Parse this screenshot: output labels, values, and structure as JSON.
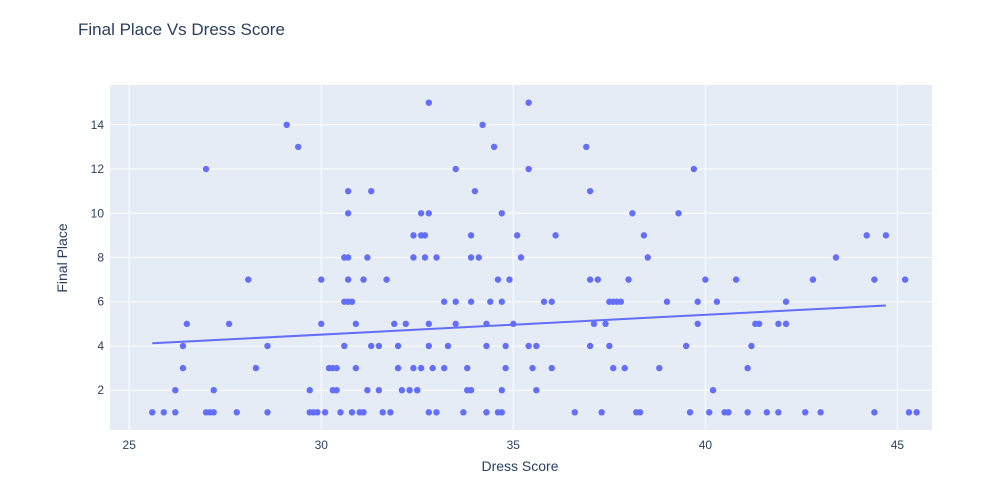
{
  "chart_data": {
    "type": "scatter",
    "title": "Final Place Vs Dress Score",
    "xlabel": "Dress Score",
    "ylabel": "Final Place",
    "xlim": [
      24.5,
      45.9
    ],
    "ylim": [
      0.2,
      15.8
    ],
    "xticks": [
      25,
      30,
      35,
      40,
      45
    ],
    "yticks": [
      2,
      4,
      6,
      8,
      10,
      12,
      14
    ],
    "grid": true,
    "legend": "none",
    "colors": {
      "points": "#636efa",
      "trend": "#636efa",
      "plot_bg": "#e5ecf6",
      "grid": "#ffffff"
    },
    "trendline": [
      [
        25.6,
        4.12
      ],
      [
        44.7,
        5.83
      ]
    ],
    "points": [
      [
        25.6,
        1
      ],
      [
        25.9,
        1
      ],
      [
        26.2,
        1
      ],
      [
        26.2,
        2
      ],
      [
        26.4,
        3
      ],
      [
        26.4,
        4
      ],
      [
        26.5,
        5
      ],
      [
        27.0,
        12
      ],
      [
        27.0,
        1
      ],
      [
        27.1,
        1
      ],
      [
        27.2,
        2
      ],
      [
        27.2,
        1
      ],
      [
        27.6,
        5
      ],
      [
        27.8,
        1
      ],
      [
        28.1,
        7
      ],
      [
        28.3,
        3
      ],
      [
        28.6,
        4
      ],
      [
        28.6,
        1
      ],
      [
        29.1,
        14
      ],
      [
        29.4,
        13
      ],
      [
        29.7,
        2
      ],
      [
        29.7,
        1
      ],
      [
        29.8,
        1
      ],
      [
        29.9,
        1
      ],
      [
        30.0,
        7
      ],
      [
        30.0,
        5
      ],
      [
        30.1,
        1
      ],
      [
        30.2,
        3
      ],
      [
        30.3,
        3
      ],
      [
        30.3,
        2
      ],
      [
        30.4,
        2
      ],
      [
        30.4,
        3
      ],
      [
        30.5,
        1
      ],
      [
        30.6,
        4
      ],
      [
        30.6,
        6
      ],
      [
        30.6,
        8
      ],
      [
        30.7,
        6
      ],
      [
        30.7,
        8
      ],
      [
        30.7,
        10
      ],
      [
        30.7,
        11
      ],
      [
        30.7,
        7
      ],
      [
        30.8,
        6
      ],
      [
        30.8,
        1
      ],
      [
        30.9,
        5
      ],
      [
        30.9,
        3
      ],
      [
        31.0,
        1
      ],
      [
        31.1,
        1
      ],
      [
        31.1,
        7
      ],
      [
        31.2,
        2
      ],
      [
        31.2,
        8
      ],
      [
        31.3,
        4
      ],
      [
        31.3,
        11
      ],
      [
        31.5,
        2
      ],
      [
        31.5,
        4
      ],
      [
        31.6,
        1
      ],
      [
        31.7,
        7
      ],
      [
        31.8,
        1
      ],
      [
        31.9,
        5
      ],
      [
        32.0,
        4
      ],
      [
        32.0,
        3
      ],
      [
        32.1,
        2
      ],
      [
        32.2,
        5
      ],
      [
        32.3,
        2
      ],
      [
        32.4,
        3
      ],
      [
        32.4,
        9
      ],
      [
        32.4,
        8
      ],
      [
        32.5,
        2
      ],
      [
        32.5,
        2
      ],
      [
        32.6,
        3
      ],
      [
        32.6,
        9
      ],
      [
        32.6,
        10
      ],
      [
        32.7,
        8
      ],
      [
        32.7,
        9
      ],
      [
        32.8,
        15
      ],
      [
        32.8,
        10
      ],
      [
        32.8,
        5
      ],
      [
        32.8,
        4
      ],
      [
        32.8,
        1
      ],
      [
        32.9,
        3
      ],
      [
        33.0,
        1
      ],
      [
        33.0,
        8
      ],
      [
        33.2,
        3
      ],
      [
        33.2,
        6
      ],
      [
        33.3,
        4
      ],
      [
        33.5,
        12
      ],
      [
        33.5,
        6
      ],
      [
        33.5,
        5
      ],
      [
        33.7,
        1
      ],
      [
        33.8,
        2
      ],
      [
        33.8,
        3
      ],
      [
        33.9,
        9
      ],
      [
        33.9,
        6
      ],
      [
        33.9,
        2
      ],
      [
        33.9,
        8
      ],
      [
        34.0,
        11
      ],
      [
        34.1,
        8
      ],
      [
        34.2,
        14
      ],
      [
        34.3,
        5
      ],
      [
        34.3,
        4
      ],
      [
        34.3,
        1
      ],
      [
        34.4,
        6
      ],
      [
        34.5,
        13
      ],
      [
        34.6,
        1
      ],
      [
        34.6,
        7
      ],
      [
        34.7,
        1
      ],
      [
        34.7,
        2
      ],
      [
        34.7,
        6
      ],
      [
        34.7,
        10
      ],
      [
        34.8,
        3
      ],
      [
        34.8,
        4
      ],
      [
        34.9,
        7
      ],
      [
        35.0,
        5
      ],
      [
        35.1,
        9
      ],
      [
        35.2,
        8
      ],
      [
        35.4,
        15
      ],
      [
        35.4,
        12
      ],
      [
        35.4,
        4
      ],
      [
        35.5,
        3
      ],
      [
        35.6,
        4
      ],
      [
        35.6,
        2
      ],
      [
        35.8,
        6
      ],
      [
        36.0,
        3
      ],
      [
        36.0,
        6
      ],
      [
        36.1,
        9
      ],
      [
        36.6,
        1
      ],
      [
        36.9,
        13
      ],
      [
        37.0,
        11
      ],
      [
        37.0,
        4
      ],
      [
        37.0,
        7
      ],
      [
        37.1,
        5
      ],
      [
        37.2,
        7
      ],
      [
        37.3,
        1
      ],
      [
        37.4,
        5
      ],
      [
        37.5,
        4
      ],
      [
        37.5,
        6
      ],
      [
        37.6,
        3
      ],
      [
        37.6,
        6
      ],
      [
        37.7,
        6
      ],
      [
        37.8,
        6
      ],
      [
        37.9,
        3
      ],
      [
        38.0,
        7
      ],
      [
        38.1,
        10
      ],
      [
        38.2,
        1
      ],
      [
        38.3,
        1
      ],
      [
        38.4,
        9
      ],
      [
        38.5,
        8
      ],
      [
        38.8,
        3
      ],
      [
        39.0,
        6
      ],
      [
        39.3,
        10
      ],
      [
        39.5,
        4
      ],
      [
        39.6,
        1
      ],
      [
        39.7,
        12
      ],
      [
        39.8,
        5
      ],
      [
        39.8,
        6
      ],
      [
        40.0,
        7
      ],
      [
        40.1,
        1
      ],
      [
        40.2,
        2
      ],
      [
        40.3,
        6
      ],
      [
        40.5,
        1
      ],
      [
        40.6,
        1
      ],
      [
        40.6,
        1
      ],
      [
        40.8,
        7
      ],
      [
        41.1,
        1
      ],
      [
        41.1,
        3
      ],
      [
        41.2,
        4
      ],
      [
        41.3,
        5
      ],
      [
        41.4,
        5
      ],
      [
        41.6,
        1
      ],
      [
        41.9,
        5
      ],
      [
        41.9,
        1
      ],
      [
        42.1,
        6
      ],
      [
        42.1,
        5
      ],
      [
        42.6,
        1
      ],
      [
        42.8,
        7
      ],
      [
        43.0,
        1
      ],
      [
        43.4,
        8
      ],
      [
        44.2,
        9
      ],
      [
        44.4,
        1
      ],
      [
        44.4,
        7
      ],
      [
        44.7,
        9
      ],
      [
        45.2,
        7
      ],
      [
        45.3,
        1
      ],
      [
        45.5,
        1
      ]
    ]
  }
}
